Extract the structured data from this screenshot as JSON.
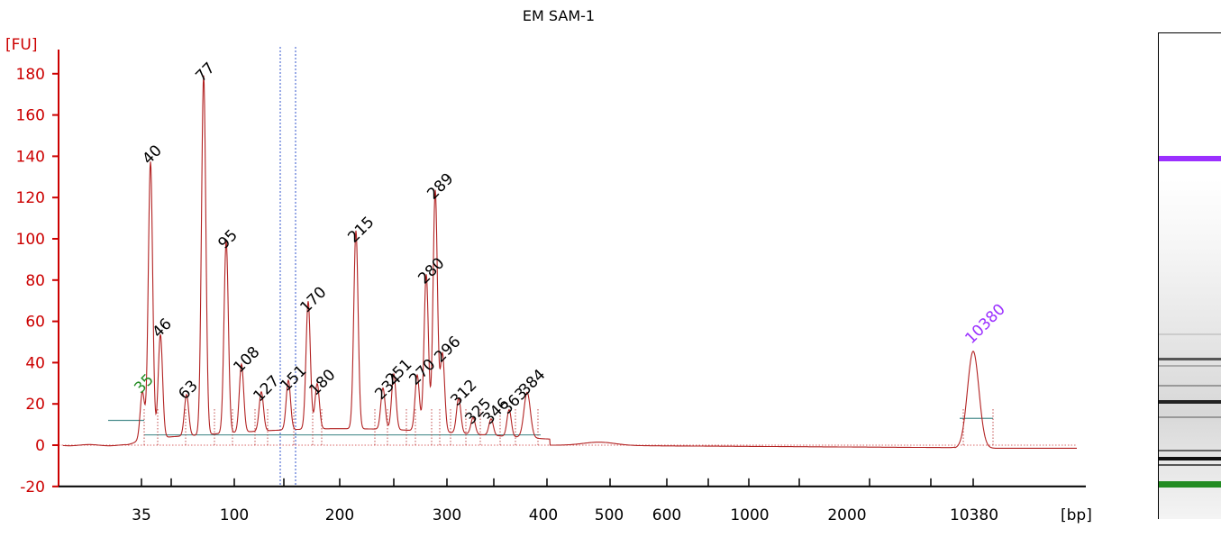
{
  "chart_data": {
    "type": "line",
    "title": "EM SAM-1",
    "ylabel": "[FU]",
    "xlabel": "[bp]",
    "ylim": [
      -20,
      185
    ],
    "yticks": [
      -20,
      0,
      20,
      40,
      60,
      80,
      100,
      120,
      140,
      160,
      180
    ],
    "x_tick_labels": [
      "35",
      "100",
      "200",
      "300",
      "400",
      "500",
      "600",
      "1000",
      "2000",
      "10380"
    ],
    "colors": {
      "trace": "#b22222",
      "lower_marker": "#228b22",
      "upper_marker": "#9b30ff",
      "axis": "#cc0000"
    },
    "peaks": [
      {
        "label": "35",
        "fu": 23,
        "kind": "lower_marker"
      },
      {
        "label": "40",
        "fu": 134
      },
      {
        "label": "46",
        "fu": 50
      },
      {
        "label": "63",
        "fu": 20
      },
      {
        "label": "77",
        "fu": 174
      },
      {
        "label": "95",
        "fu": 93
      },
      {
        "label": "108",
        "fu": 33
      },
      {
        "label": "127",
        "fu": 19
      },
      {
        "label": "151",
        "fu": 24
      },
      {
        "label": "170",
        "fu": 62
      },
      {
        "label": "180",
        "fu": 22
      },
      {
        "label": "215",
        "fu": 96
      },
      {
        "label": "234",
        "fu": 20
      },
      {
        "label": "251",
        "fu": 27
      },
      {
        "label": "270",
        "fu": 27
      },
      {
        "label": "280",
        "fu": 76
      },
      {
        "label": "289",
        "fu": 117
      },
      {
        "label": "296",
        "fu": 38
      },
      {
        "label": "312",
        "fu": 17
      },
      {
        "label": "325",
        "fu": 8
      },
      {
        "label": "346",
        "fu": 8
      },
      {
        "label": "363",
        "fu": 13
      },
      {
        "label": "384",
        "fu": 22
      },
      {
        "label": "10380",
        "fu": 47,
        "kind": "upper_marker"
      }
    ]
  }
}
